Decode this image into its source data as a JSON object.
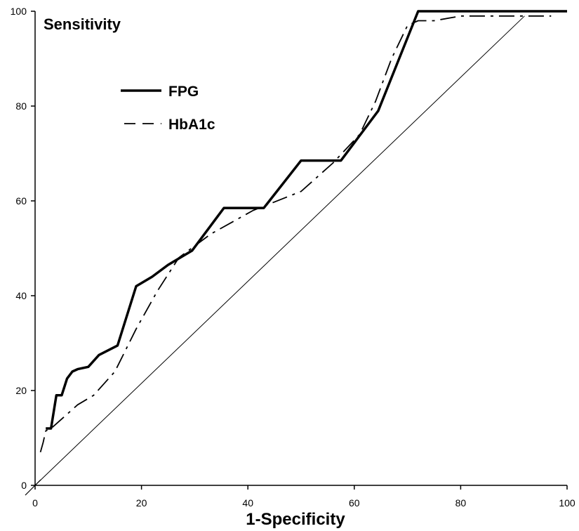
{
  "chart_data": {
    "type": "line",
    "title": "",
    "xlabel": "1-Specificity",
    "ylabel": "Sensitivity",
    "xlim": [
      0,
      100
    ],
    "ylim": [
      0,
      100
    ],
    "x_ticks": [
      "0",
      "20",
      "40",
      "60",
      "80",
      "100"
    ],
    "y_ticks": [
      "0",
      "20",
      "40",
      "60",
      "80",
      "100"
    ],
    "grid": false,
    "legend_position": "top-left",
    "series": [
      {
        "name": "FPG",
        "style": "solid",
        "color": "#000000",
        "x": [
          2,
          3,
          4,
          5,
          6,
          7,
          8,
          10,
          12,
          15.5,
          19,
          22,
          25,
          29.5,
          35.5,
          43,
          50,
          57.5,
          64.5,
          72,
          100
        ],
        "y": [
          12,
          12,
          19,
          19,
          22.5,
          24,
          24.5,
          25,
          27.5,
          29.5,
          42,
          44,
          46.5,
          49.5,
          58.5,
          58.5,
          68.5,
          68.5,
          79,
          100,
          100
        ]
      },
      {
        "name": "HbA1c",
        "style": "dashed",
        "color": "#000000",
        "x": [
          1,
          1.5,
          2,
          3,
          4,
          6,
          8,
          11,
          15,
          19,
          23,
          27,
          33,
          41,
          50,
          56,
          61,
          64,
          67,
          70,
          72,
          75,
          80,
          90,
          97
        ],
        "y": [
          7,
          9,
          11.5,
          12,
          13,
          15,
          17,
          19,
          24,
          33,
          41,
          48,
          53,
          58,
          62,
          68,
          74,
          81,
          90,
          97,
          98,
          98,
          99,
          99,
          99
        ]
      },
      {
        "name": "",
        "style": "thin",
        "color": "#000000",
        "x": [
          0,
          92
        ],
        "y": [
          0,
          99
        ]
      }
    ]
  }
}
